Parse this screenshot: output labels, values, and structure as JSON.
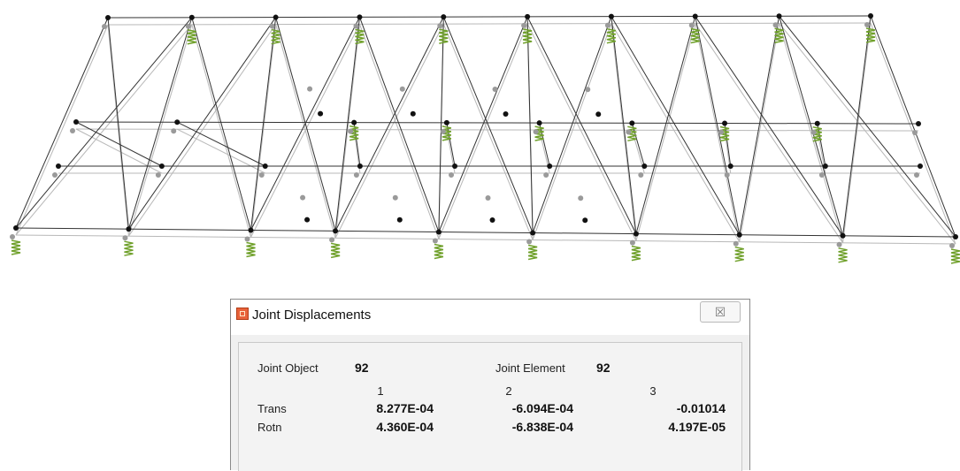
{
  "dialog": {
    "title": "Joint Displacements",
    "close_symbol": "☒",
    "joint_object_label": "Joint Object",
    "joint_object_value": "92",
    "joint_element_label": "Joint Element",
    "joint_element_value": "92",
    "columns": [
      "1",
      "2",
      "3"
    ],
    "rows": [
      {
        "label": "Trans",
        "values": [
          "8.277E-04",
          "-6.094E-04",
          "-0.01014"
        ]
      },
      {
        "label": "Rotn",
        "values": [
          "4.360E-04",
          "-6.838E-04",
          "4.197E-05"
        ]
      }
    ]
  },
  "colors": {
    "deformed_shape": "#333333",
    "undeformed_shape": "#b8b8b8",
    "joint_deformed": "#111111",
    "joint_undeformed": "#9a9a9a",
    "support": "#6fa02a"
  },
  "icons": {
    "dialog_icon": "app-icon",
    "close_icon": "close-icon",
    "support_icon": "support-spring-icon"
  }
}
